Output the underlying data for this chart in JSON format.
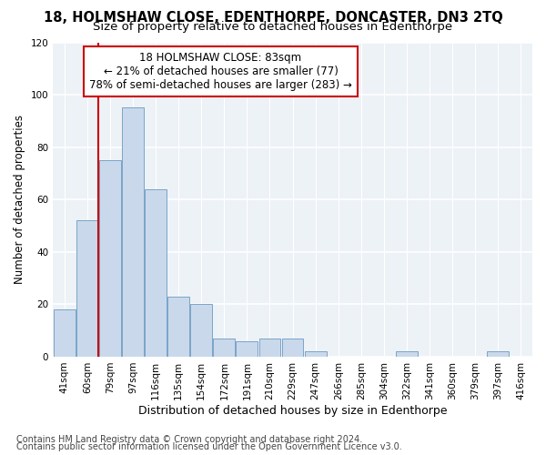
{
  "title": "18, HOLMSHAW CLOSE, EDENTHORPE, DONCASTER, DN3 2TQ",
  "subtitle": "Size of property relative to detached houses in Edenthorpe",
  "xlabel": "Distribution of detached houses by size in Edenthorpe",
  "ylabel": "Number of detached properties",
  "categories": [
    "41sqm",
    "60sqm",
    "79sqm",
    "97sqm",
    "116sqm",
    "135sqm",
    "154sqm",
    "172sqm",
    "191sqm",
    "210sqm",
    "229sqm",
    "247sqm",
    "266sqm",
    "285sqm",
    "304sqm",
    "322sqm",
    "341sqm",
    "360sqm",
    "379sqm",
    "397sqm",
    "416sqm"
  ],
  "values": [
    18,
    52,
    75,
    95,
    64,
    23,
    20,
    7,
    6,
    7,
    7,
    2,
    0,
    0,
    0,
    2,
    0,
    0,
    0,
    2,
    0
  ],
  "bar_color": "#c9d9eb",
  "bar_edge_color": "#7ba3c8",
  "ylim": [
    0,
    120
  ],
  "yticks": [
    0,
    20,
    40,
    60,
    80,
    100,
    120
  ],
  "red_line_x": 1.5,
  "annotation_text": "18 HOLMSHAW CLOSE: 83sqm\n← 21% of detached houses are smaller (77)\n78% of semi-detached houses are larger (283) →",
  "annotation_box_color": "#ffffff",
  "annotation_box_edge": "#cc0000",
  "footer1": "Contains HM Land Registry data © Crown copyright and database right 2024.",
  "footer2": "Contains public sector information licensed under the Open Government Licence v3.0.",
  "title_fontsize": 10.5,
  "subtitle_fontsize": 9.5,
  "xlabel_fontsize": 9,
  "ylabel_fontsize": 8.5,
  "tick_fontsize": 7.5,
  "annotation_fontsize": 8.5,
  "footer_fontsize": 7,
  "bg_color": "#edf2f7"
}
